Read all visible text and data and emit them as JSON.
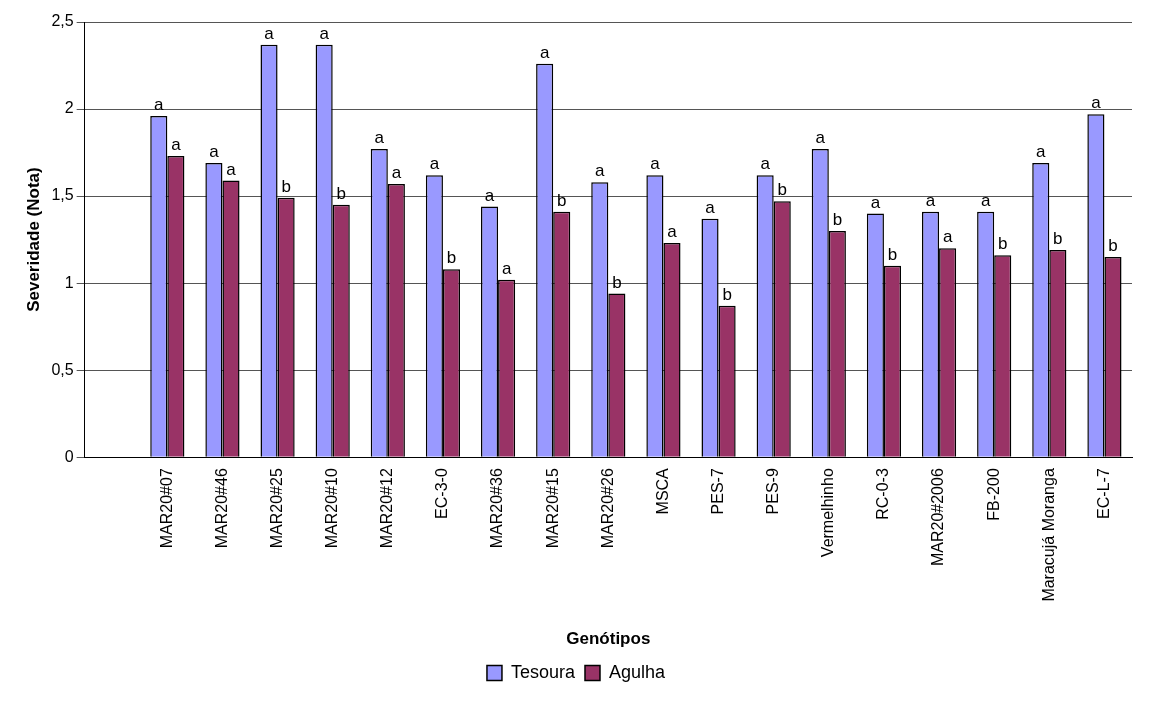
{
  "chart_data": {
    "type": "bar",
    "xlabel": "Genótipos",
    "ylabel": "Severidade (Nota)",
    "categories": [
      null,
      "MAR20#07",
      "MAR20#46",
      "MAR20#25",
      "MAR20#10",
      "MAR20#12",
      "EC-3-0",
      "MAR20#36",
      "MAR20#15",
      "MAR20#26",
      "MSCA",
      "PES-7",
      "PES-9",
      "Vermelhinho",
      "RC-0-3",
      "MAR20#2006",
      "FB-200",
      "Maracujá Moranga",
      "EC-L-7"
    ],
    "series": [
      {
        "name": "Tesoura",
        "color": "#9999ff",
        "values": [
          null,
          1.96,
          1.69,
          2.37,
          2.37,
          1.77,
          1.62,
          1.44,
          2.26,
          1.58,
          1.62,
          1.37,
          1.62,
          1.77,
          1.4,
          1.41,
          1.41,
          1.69,
          1.97
        ],
        "value_labels": [
          null,
          "a",
          "a",
          "a",
          "a",
          "a",
          "a",
          "a",
          "a",
          "a",
          "a",
          "a",
          "a",
          "a",
          "a",
          "a",
          "a",
          "a",
          "a"
        ]
      },
      {
        "name": "Agulha",
        "color": "#993366",
        "values": [
          null,
          1.73,
          1.59,
          1.49,
          1.45,
          1.57,
          1.08,
          1.02,
          1.41,
          0.94,
          1.23,
          0.87,
          1.47,
          1.3,
          1.1,
          1.2,
          1.16,
          1.19,
          1.15
        ],
        "value_labels": [
          null,
          "a",
          "a",
          "b",
          "b",
          "a",
          "b",
          "a",
          "b",
          "b",
          "a",
          "b",
          "b",
          "b",
          "b",
          "a",
          "b",
          "b",
          "b"
        ]
      }
    ],
    "ylim": [
      0,
      2.5
    ],
    "yticks": [
      0,
      {
        "value": 0.5,
        "label": "0,5"
      },
      1,
      {
        "value": 1.5,
        "label": "1,5"
      },
      2,
      {
        "value": 2.5,
        "label": "2,5"
      }
    ],
    "grid": "y",
    "legend": "bottom"
  }
}
